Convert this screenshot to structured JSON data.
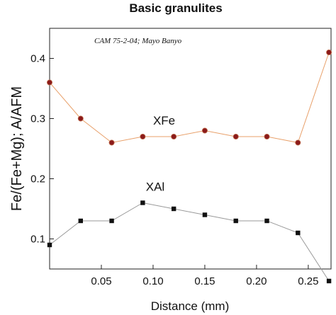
{
  "chart_data": {
    "type": "line",
    "title": "Basic granulites",
    "annotation": "CAM 75-2-04; Mayo Banyo",
    "xlabel": "Distance (mm)",
    "ylabel": "Fe/(Fe+Mg); A/AFM",
    "xlim": [
      0,
      0.272
    ],
    "ylim": [
      0.05,
      0.45
    ],
    "xticks": [
      0.05,
      0.1,
      0.15,
      0.2,
      0.25
    ],
    "xtick_labels": [
      "0.05",
      "0.10",
      "0.15",
      "0.20",
      "0.25"
    ],
    "yticks": [
      0.1,
      0.2,
      0.3,
      0.4
    ],
    "ytick_labels": [
      "0.1",
      "0.2",
      "0.3",
      "0.4"
    ],
    "grid": false,
    "series": [
      {
        "name": "XFe",
        "color": "#e8a06a",
        "marker_color": "#8b1a1a",
        "marker": "circle",
        "label_at": [
          0.1,
          0.29
        ],
        "x": [
          0.0,
          0.03,
          0.06,
          0.09,
          0.12,
          0.15,
          0.18,
          0.21,
          0.24,
          0.27
        ],
        "y": [
          0.36,
          0.3,
          0.26,
          0.27,
          0.27,
          0.28,
          0.27,
          0.27,
          0.26,
          0.41
        ]
      },
      {
        "name": "XAl",
        "color": "#999999",
        "marker_color": "#111111",
        "marker": "square",
        "label_at": [
          0.093,
          0.18
        ],
        "x": [
          0.0,
          0.03,
          0.06,
          0.09,
          0.12,
          0.15,
          0.18,
          0.21,
          0.24,
          0.27
        ],
        "y": [
          0.09,
          0.13,
          0.13,
          0.16,
          0.15,
          0.14,
          0.13,
          0.13,
          0.11,
          0.03
        ]
      }
    ]
  }
}
